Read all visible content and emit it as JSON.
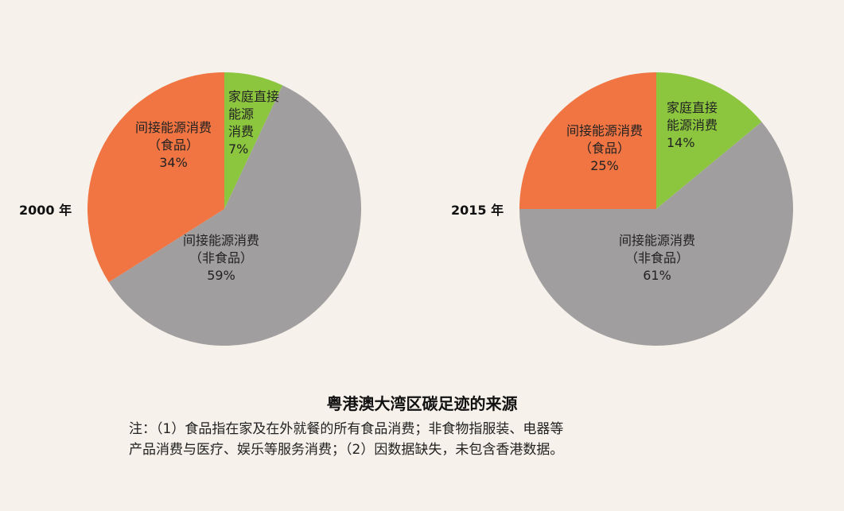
{
  "chart_data": [
    {
      "type": "pie",
      "label": "2000 年",
      "slices": [
        {
          "lines": [
            "家庭直接",
            "能源",
            "消费",
            "7%"
          ],
          "value": 7,
          "color": "#8cc63f"
        },
        {
          "lines": [
            "间接能源消费",
            "（非食品）",
            "59%"
          ],
          "value": 59,
          "color": "#a19e9f"
        },
        {
          "lines": [
            "间接能源消费",
            "（食品）",
            "34%"
          ],
          "value": 34,
          "color": "#f07543"
        }
      ]
    },
    {
      "type": "pie",
      "label": "2015 年",
      "slices": [
        {
          "lines": [
            "家庭直接",
            "能源消费",
            "14%"
          ],
          "value": 14,
          "color": "#8cc63f"
        },
        {
          "lines": [
            "间接能源消费",
            "（非食品）",
            "61%"
          ],
          "value": 61,
          "color": "#a19e9f"
        },
        {
          "lines": [
            "间接能源消费",
            "（食品）",
            "25%"
          ],
          "value": 25,
          "color": "#f07543"
        }
      ]
    }
  ],
  "title": "粤港澳大湾区碳足迹的来源",
  "notes": [
    "注：（1）食品指在家及在外就餐的所有食品消费；非食物指服装、电器等",
    "产品消费与医疗、娱乐等服务消费；（2）因数据缺失，未包含香港数据。"
  ]
}
